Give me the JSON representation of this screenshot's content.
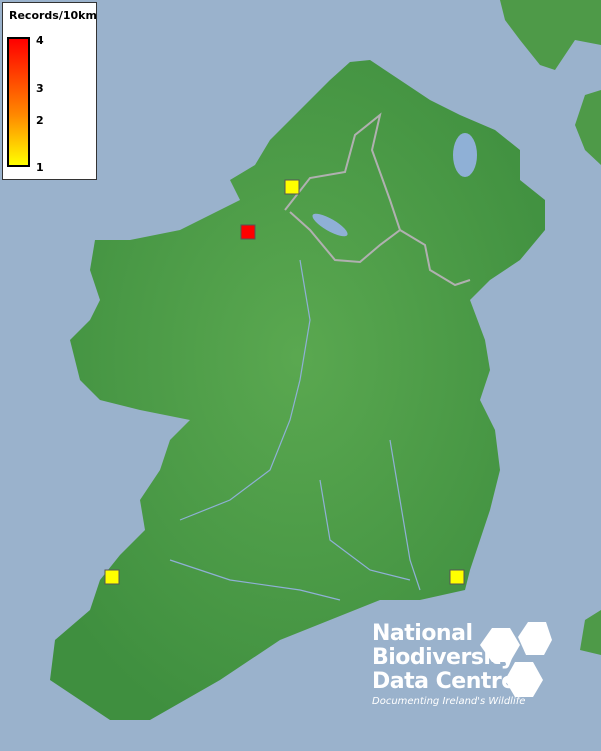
{
  "legend": {
    "title": "Records/10km",
    "labels": [
      "4",
      "3",
      "2",
      "1"
    ],
    "colors": {
      "max": "#ff0000",
      "mid": "#ff8800",
      "min": "#ffff00"
    }
  },
  "records": [
    {
      "value": 1,
      "color": "#ffff00"
    },
    {
      "value": 4,
      "color": "#ff0000"
    },
    {
      "value": 1,
      "color": "#ffff00"
    },
    {
      "value": 1,
      "color": "#ffff00"
    }
  ],
  "logo": {
    "line1": "National",
    "line2": "Biodiversity",
    "line3": "Data Centre",
    "tagline": "Documenting Ireland's Wildlife"
  },
  "colors": {
    "sea": "#9ab2cc",
    "land": "#4e9e4a",
    "border": "#b0b0b0",
    "water": "#8fb0d6"
  }
}
